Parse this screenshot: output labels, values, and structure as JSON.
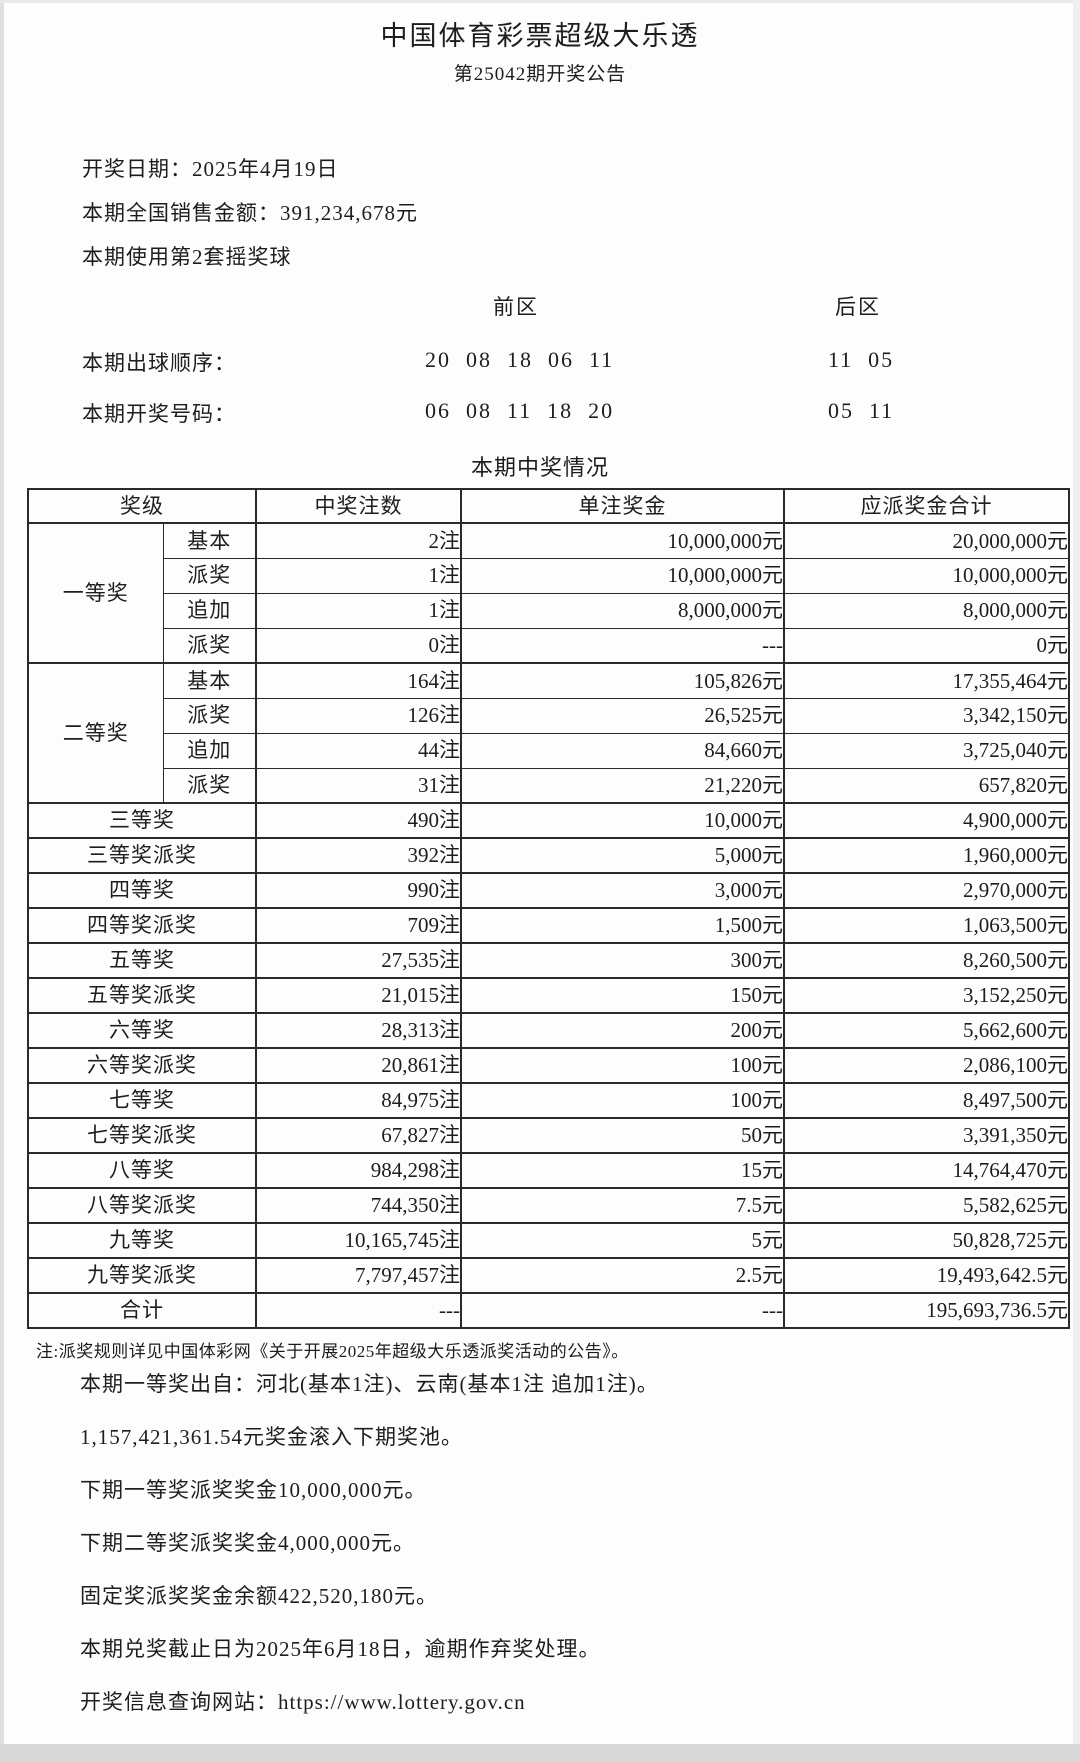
{
  "header": {
    "title": "中国体育彩票超级大乐透",
    "subtitle": "第25042期开奖公告"
  },
  "info_lines": [
    "开奖日期：2025年4月19日",
    "本期全国销售金额：391,234,678元",
    "本期使用第2套摇奖球"
  ],
  "draw": {
    "front_zone_label": "前区",
    "rear_zone_label": "后区",
    "rows": [
      {
        "label": "本期出球顺序：",
        "front": "20  08  18  06  11",
        "rear": "11  05"
      },
      {
        "label": "本期开奖号码：",
        "front": "06  08  11  18  20",
        "rear": "05  11"
      }
    ]
  },
  "table": {
    "section_title": "本期中奖情况",
    "headers": [
      "奖级",
      "中奖注数",
      "单注奖金",
      "应派奖金合计"
    ],
    "groups": [
      {
        "level": "一等奖",
        "subrows": [
          {
            "type": "基本",
            "count": "2注",
            "prize": "10,000,000元",
            "total": "20,000,000元"
          },
          {
            "type": "派奖",
            "count": "1注",
            "prize": "10,000,000元",
            "total": "10,000,000元"
          },
          {
            "type": "追加",
            "count": "1注",
            "prize": "8,000,000元",
            "total": "8,000,000元"
          },
          {
            "type": "派奖",
            "count": "0注",
            "prize": "---",
            "total": "0元"
          }
        ]
      },
      {
        "level": "二等奖",
        "subrows": [
          {
            "type": "基本",
            "count": "164注",
            "prize": "105,826元",
            "total": "17,355,464元"
          },
          {
            "type": "派奖",
            "count": "126注",
            "prize": "26,525元",
            "total": "3,342,150元"
          },
          {
            "type": "追加",
            "count": "44注",
            "prize": "84,660元",
            "total": "3,725,040元"
          },
          {
            "type": "派奖",
            "count": "31注",
            "prize": "21,220元",
            "total": "657,820元"
          }
        ]
      }
    ],
    "rows": [
      {
        "level": "三等奖",
        "count": "490注",
        "prize": "10,000元",
        "total": "4,900,000元"
      },
      {
        "level": "三等奖派奖",
        "count": "392注",
        "prize": "5,000元",
        "total": "1,960,000元"
      },
      {
        "level": "四等奖",
        "count": "990注",
        "prize": "3,000元",
        "total": "2,970,000元"
      },
      {
        "level": "四等奖派奖",
        "count": "709注",
        "prize": "1,500元",
        "total": "1,063,500元"
      },
      {
        "level": "五等奖",
        "count": "27,535注",
        "prize": "300元",
        "total": "8,260,500元"
      },
      {
        "level": "五等奖派奖",
        "count": "21,015注",
        "prize": "150元",
        "total": "3,152,250元"
      },
      {
        "level": "六等奖",
        "count": "28,313注",
        "prize": "200元",
        "total": "5,662,600元"
      },
      {
        "level": "六等奖派奖",
        "count": "20,861注",
        "prize": "100元",
        "total": "2,086,100元"
      },
      {
        "level": "七等奖",
        "count": "84,975注",
        "prize": "100元",
        "total": "8,497,500元"
      },
      {
        "level": "七等奖派奖",
        "count": "67,827注",
        "prize": "50元",
        "total": "3,391,350元"
      },
      {
        "level": "八等奖",
        "count": "984,298注",
        "prize": "15元",
        "total": "14,764,470元"
      },
      {
        "level": "八等奖派奖",
        "count": "744,350注",
        "prize": "7.5元",
        "total": "5,582,625元"
      },
      {
        "level": "九等奖",
        "count": "10,165,745注",
        "prize": "5元",
        "total": "50,828,725元"
      },
      {
        "level": "九等奖派奖",
        "count": "7,797,457注",
        "prize": "2.5元",
        "total": "19,493,642.5元"
      }
    ],
    "total_row": {
      "level": "合计",
      "count": "---",
      "prize": "---",
      "total": "195,693,736.5元"
    },
    "note": "注:派奖规则详见中国体彩网《关于开展2025年超级大乐透派奖活动的公告》。"
  },
  "footer_lines": [
    "本期一等奖出自：河北(基本1注)、云南(基本1注 追加1注)。",
    "1,157,421,361.54元奖金滚入下期奖池。",
    "下期一等奖派奖奖金10,000,000元。",
    "下期二等奖派奖奖金4,000,000元。",
    "固定奖派奖奖金余额422,520,180元。",
    "本期兑奖截止日为2025年6月18日，逾期作弃奖处理。",
    "开奖信息查询网站：https://www.lottery.gov.cn"
  ],
  "colors": {
    "text": "#1d1d1d",
    "table_border": "#2a2a2a",
    "page_background": "#fdfdfd"
  }
}
